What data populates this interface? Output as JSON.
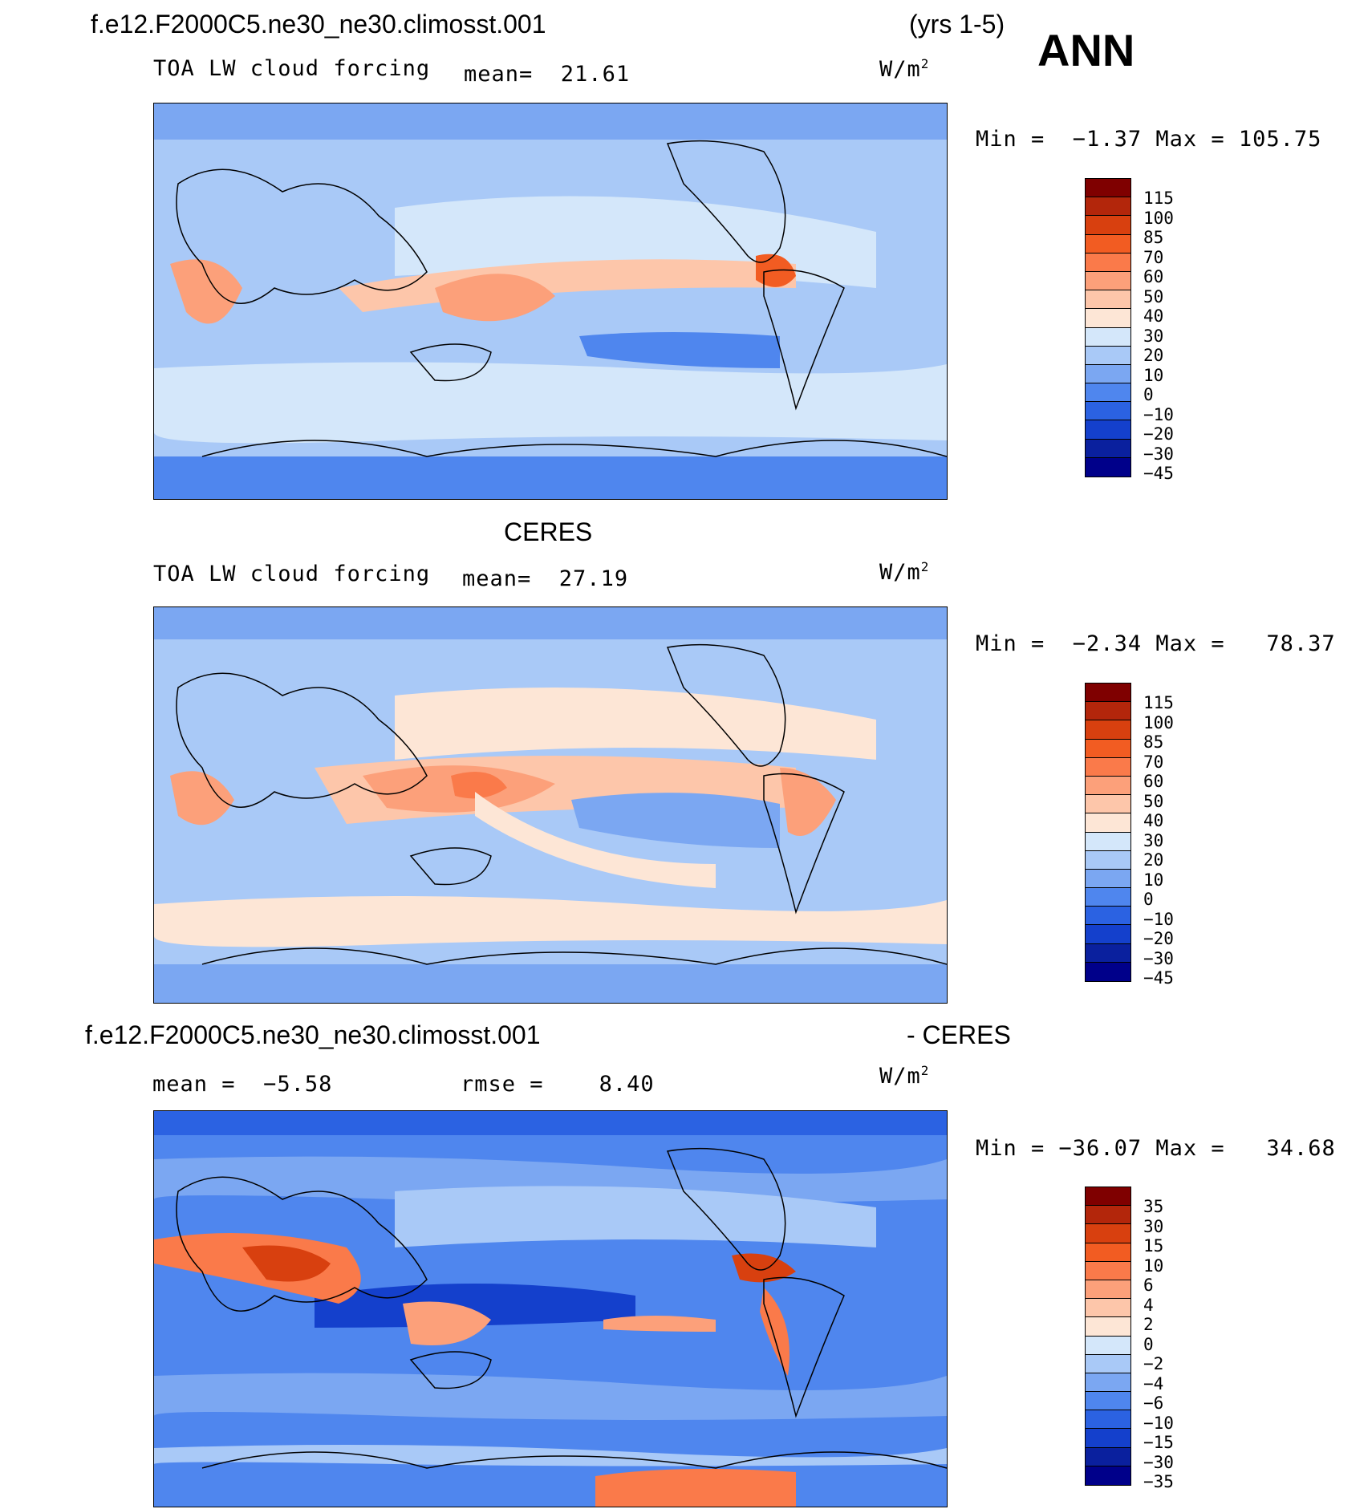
{
  "header": {
    "case_title": "f.e12.F2000C5.ne30_ne30.climosst.001",
    "years": "(yrs 1-5)",
    "season": "ANN"
  },
  "panels": [
    {
      "subtitle": "TOA LW cloud forcing",
      "stat_label": "mean=",
      "stat_value": "21.61",
      "units": "W/m",
      "units_exp": "2",
      "min_label": "Min =",
      "min_value": "−1.37",
      "max_label": "Max =",
      "max_value": "105.75",
      "levels": [
        "115",
        "100",
        "85",
        "70",
        "60",
        "50",
        "40",
        "30",
        "20",
        "10",
        "0",
        "−10",
        "−20",
        "−30",
        "−45"
      ]
    },
    {
      "title": "CERES",
      "subtitle": "TOA LW cloud forcing",
      "stat_label": "mean=",
      "stat_value": "27.19",
      "units": "W/m",
      "units_exp": "2",
      "min_label": "Min =",
      "min_value": "−2.34",
      "max_label": "Max =",
      "max_value": "78.37",
      "levels": [
        "115",
        "100",
        "85",
        "70",
        "60",
        "50",
        "40",
        "30",
        "20",
        "10",
        "0",
        "−10",
        "−20",
        "−30",
        "−45"
      ]
    },
    {
      "title_left": "f.e12.F2000C5.ne30_ne30.climosst.001",
      "title_right": "- CERES",
      "stat_label": "mean =",
      "stat_value": "−5.58",
      "rmse_label": "rmse =",
      "rmse_value": "8.40",
      "units": "W/m",
      "units_exp": "2",
      "min_label": "Min =",
      "min_value": "−36.07",
      "max_label": "Max =",
      "max_value": "34.68",
      "levels": [
        "35",
        "30",
        "15",
        "10",
        "6",
        "4",
        "2",
        "0",
        "−2",
        "−4",
        "−6",
        "−10",
        "−15",
        "−30",
        "−35"
      ]
    }
  ],
  "colorbar_colors": [
    "#7f0000",
    "#b3260b",
    "#d8400f",
    "#f25c22",
    "#fa7a4a",
    "#fca07a",
    "#fdc6aa",
    "#fde6d6",
    "#d4e7fa",
    "#a9c9f7",
    "#7ba7f2",
    "#4f86ee",
    "#2b62e2",
    "#1440cc",
    "#0a209e",
    "#00008a"
  ]
}
